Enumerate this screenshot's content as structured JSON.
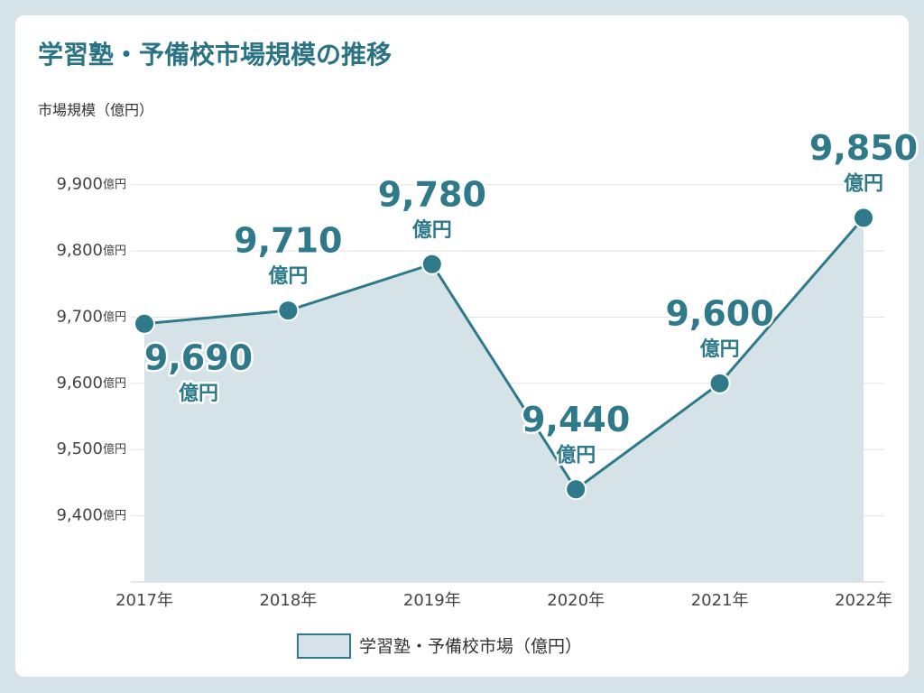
{
  "chart_data": {
    "type": "area",
    "title": "学習塾・予備校市場規模の推移",
    "y_label": "市場規模（億円）",
    "unit": "億円",
    "categories": [
      "2017年",
      "2018年",
      "2019年",
      "2020年",
      "2021年",
      "2022年"
    ],
    "series": [
      {
        "name": "学習塾・予備校市場（億円）",
        "color": "#2e7a8a",
        "fill": "#d5e3e9",
        "values": [
          9690,
          9710,
          9780,
          9440,
          9600,
          9850
        ],
        "value_labels": [
          "9,690",
          "9,710",
          "9,780",
          "9,440",
          "9,600",
          "9,850"
        ]
      }
    ],
    "ylim": [
      9300,
      9950
    ],
    "yticks": [
      {
        "value": 9400,
        "label": "9,400"
      },
      {
        "value": 9500,
        "label": "9,500"
      },
      {
        "value": 9600,
        "label": "9,600"
      },
      {
        "value": 9700,
        "label": "9,700"
      },
      {
        "value": 9800,
        "label": "9,800"
      },
      {
        "value": 9900,
        "label": "9,900"
      }
    ],
    "grid": true
  }
}
